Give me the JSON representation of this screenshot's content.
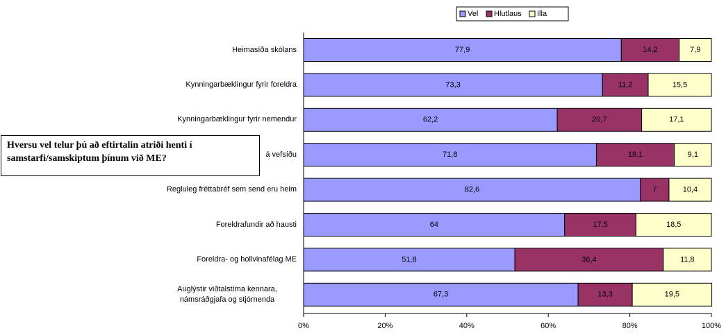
{
  "chart_data": {
    "type": "stacked-bar-horizontal",
    "title": "Hversu vel telur þú að eftirtalin atriði henti í samstarfi/samskiptum þínum við ME?",
    "categories": [
      "Heimasíða skólans",
      "Kynningarbæklingur fyrir foreldra",
      "Kynningarbæklingur fyrir nemendur",
      "á vefsíðu",
      "Regluleg fréttabréf sem send eru heim",
      "Foreldrafundir að hausti",
      "Foreldra- og hollvinafélag ME",
      "Auglýstir viðtalstíma kennara, námsráðgjafa og stjórnenda"
    ],
    "series": [
      {
        "name": "Vel",
        "color": "#9999ff",
        "values": [
          77.9,
          73.3,
          62.2,
          71.8,
          82.6,
          64,
          51.8,
          67.3
        ],
        "value_labels": [
          "77,9",
          "73,3",
          "62,2",
          "71,8",
          "82,6",
          "64",
          "51,8",
          "67,3"
        ]
      },
      {
        "name": "Hlutlaus",
        "color": "#993366",
        "values": [
          14.2,
          11.2,
          20.7,
          19.1,
          7,
          17.5,
          36.4,
          13.3
        ],
        "value_labels": [
          "14,2",
          "11,2",
          "20,7",
          "19,1",
          "7",
          "17,5",
          "36,4",
          "13,3"
        ]
      },
      {
        "name": "Illa",
        "color": "#ffffcc",
        "values": [
          7.9,
          15.5,
          17.1,
          9.1,
          10.4,
          18.5,
          11.8,
          19.5
        ],
        "value_labels": [
          "7,9",
          "15,5",
          "17,1",
          "9,1",
          "10,4",
          "18,5",
          "11,8",
          "19,5"
        ]
      }
    ],
    "xlim": [
      0,
      100
    ],
    "xticks": [
      {
        "value": 0,
        "label": "0%"
      },
      {
        "value": 20,
        "label": "20%"
      },
      {
        "value": 40,
        "label": "40%"
      },
      {
        "value": 60,
        "label": "60%"
      },
      {
        "value": 80,
        "label": "80%"
      },
      {
        "value": 100,
        "label": "100%"
      }
    ],
    "legend": "top"
  }
}
